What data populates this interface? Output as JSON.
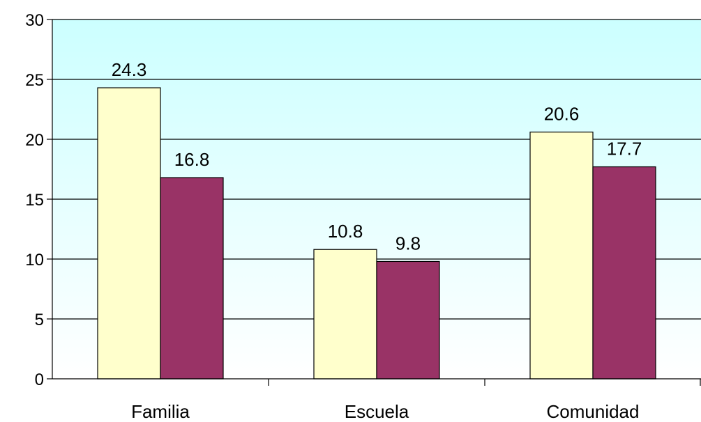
{
  "chart_data": {
    "type": "bar",
    "title": "",
    "xlabel": "",
    "ylabel": "",
    "categories": [
      "Familia",
      "Escuela",
      "Comunidad"
    ],
    "series": [
      {
        "values": [
          24.3,
          10.8,
          20.6
        ],
        "color": "#FFFFCC"
      },
      {
        "values": [
          16.8,
          9.8,
          17.7
        ],
        "color": "#993366"
      }
    ],
    "data_labels": [
      [
        "24.3",
        "10.8",
        "20.6"
      ],
      [
        "16.8",
        "9.8",
        "17.7"
      ]
    ],
    "ylim": [
      0,
      30
    ],
    "yticks": [
      0,
      5,
      10,
      15,
      20,
      25,
      30
    ],
    "grid": true,
    "legend": "none",
    "plot_background": {
      "top": "#CCFFFF",
      "bottom": "#FFFFFF"
    }
  }
}
